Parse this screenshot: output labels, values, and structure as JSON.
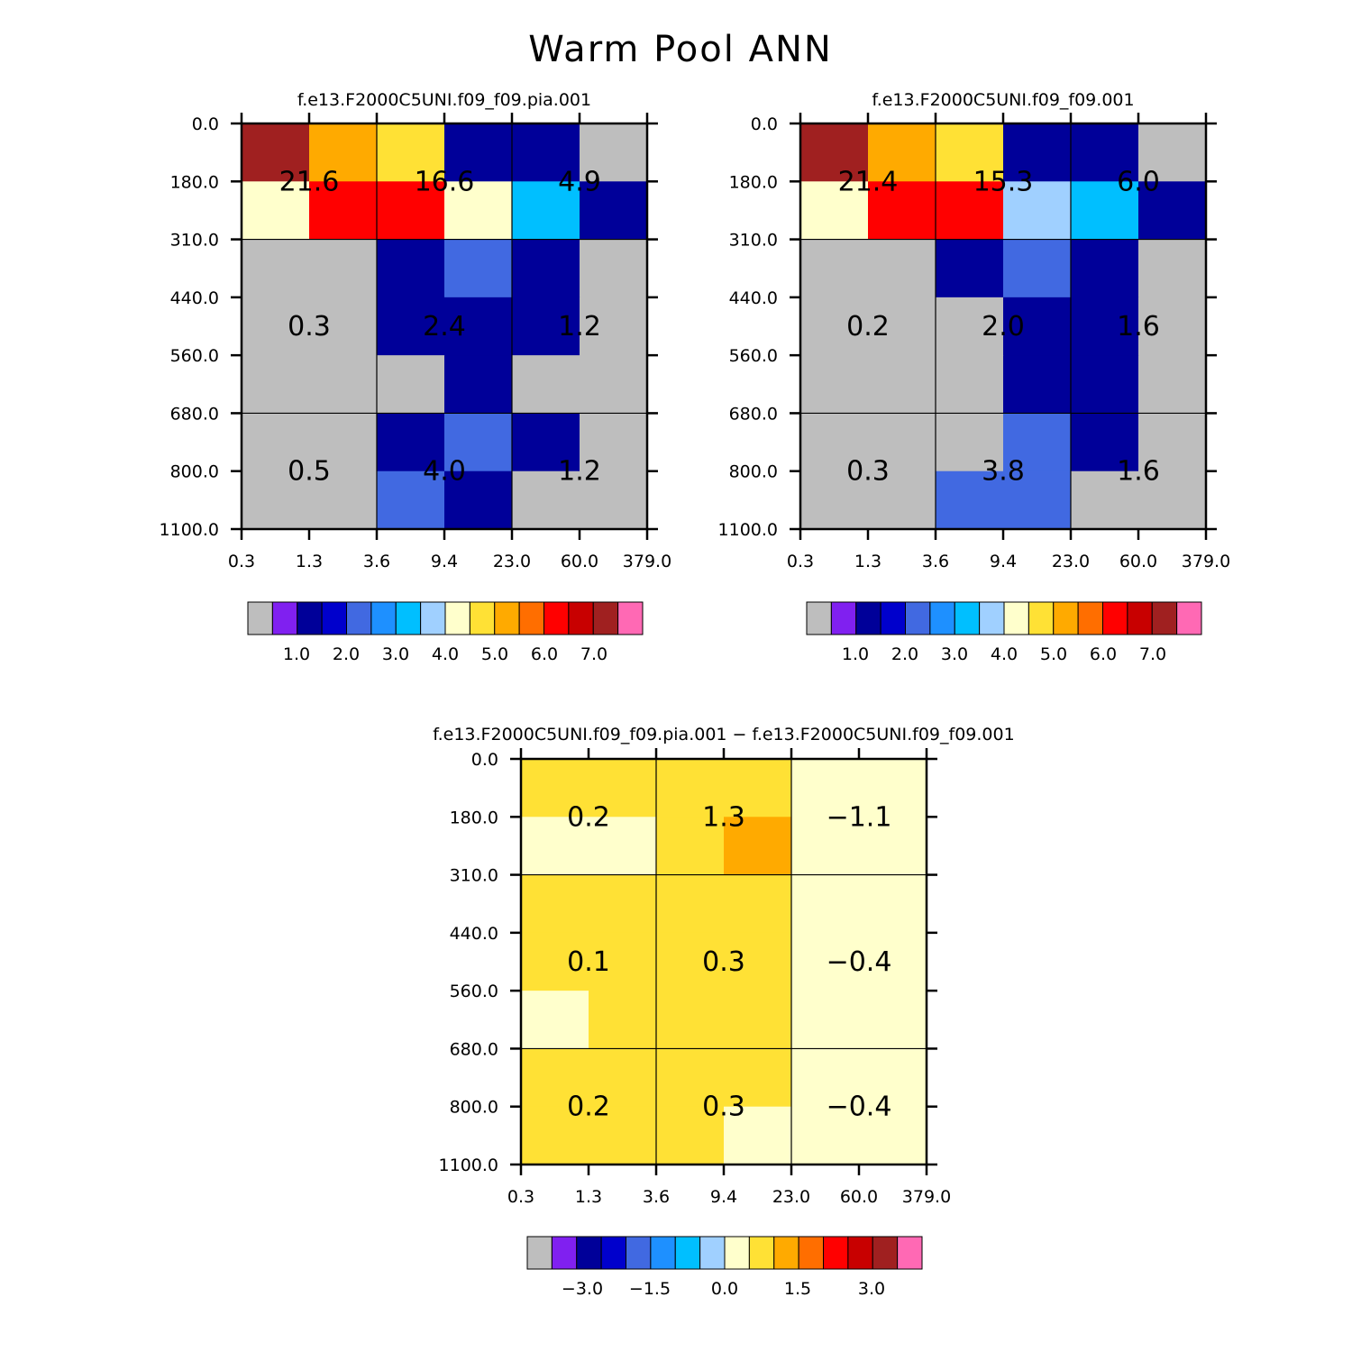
{
  "title": "Warm Pool ANN",
  "chart_data": [
    {
      "type": "heatmap",
      "name": "panel-1",
      "title": "f.e13.F2000C5UNI.f09_f09.pia.001",
      "x_ticks": [
        "0.3",
        "1.3",
        "3.6",
        "9.4",
        "23.0",
        "60.0",
        "379.0"
      ],
      "y_ticks": [
        "0.0",
        "180.0",
        "310.0",
        "440.0",
        "560.0",
        "680.0",
        "800.0",
        "1100.0"
      ],
      "cell_values": [
        [
          6.5,
          4.7,
          4.2,
          0.9,
          0.9,
          0.0
        ],
        [
          3.8,
          5.8,
          5.8,
          3.8,
          2.6,
          0.9
        ],
        [
          0.0,
          0.0,
          0.9,
          1.7,
          0.9,
          0.0
        ],
        [
          0.0,
          0.0,
          0.9,
          0.9,
          0.9,
          0.0
        ],
        [
          0.0,
          0.0,
          0.0,
          0.9,
          0.0,
          0.0
        ],
        [
          0.0,
          0.0,
          0.9,
          1.7,
          0.9,
          0.0
        ],
        [
          0.0,
          0.0,
          1.7,
          0.9,
          0.0,
          0.0
        ]
      ],
      "block_sums": {
        "row_groups": [
          [
            0,
            2
          ],
          [
            2,
            5
          ],
          [
            5,
            7
          ]
        ],
        "col_groups": [
          [
            0,
            2
          ],
          [
            2,
            4
          ],
          [
            4,
            6
          ]
        ],
        "labels": [
          [
            "21.6",
            "16.6",
            "4.9"
          ],
          [
            "0.3",
            "2.4",
            "1.2"
          ],
          [
            "0.5",
            "4.0",
            "1.2"
          ]
        ]
      },
      "colorbar": {
        "levels": [
          0.5,
          1.0,
          1.5,
          2.0,
          2.5,
          3.0,
          3.5,
          4.0,
          4.5,
          5.0,
          5.5,
          6.0,
          6.5,
          7.0,
          7.5
        ],
        "tick_labels": [
          "1.0",
          "2.0",
          "3.0",
          "4.0",
          "5.0",
          "6.0",
          "7.0"
        ]
      }
    },
    {
      "type": "heatmap",
      "name": "panel-2",
      "title": "f.e13.F2000C5UNI.f09_f09.001",
      "x_ticks": [
        "0.3",
        "1.3",
        "3.6",
        "9.4",
        "23.0",
        "60.0",
        "379.0"
      ],
      "y_ticks": [
        "0.0",
        "180.0",
        "310.0",
        "440.0",
        "560.0",
        "680.0",
        "800.0",
        "1100.0"
      ],
      "cell_values": [
        [
          6.5,
          4.7,
          4.2,
          0.9,
          0.9,
          0.0
        ],
        [
          3.8,
          5.8,
          5.8,
          3.3,
          2.8,
          0.9
        ],
        [
          0.0,
          0.0,
          0.9,
          1.7,
          0.9,
          0.0
        ],
        [
          0.0,
          0.0,
          0.0,
          0.9,
          0.9,
          0.0
        ],
        [
          0.0,
          0.0,
          0.0,
          0.9,
          0.9,
          0.0
        ],
        [
          0.0,
          0.0,
          0.0,
          1.7,
          0.9,
          0.0
        ],
        [
          0.0,
          0.0,
          1.7,
          1.7,
          0.0,
          0.0
        ]
      ],
      "block_sums": {
        "row_groups": [
          [
            0,
            2
          ],
          [
            2,
            5
          ],
          [
            5,
            7
          ]
        ],
        "col_groups": [
          [
            0,
            2
          ],
          [
            2,
            4
          ],
          [
            4,
            6
          ]
        ],
        "labels": [
          [
            "21.4",
            "15.3",
            "6.0"
          ],
          [
            "0.2",
            "2.0",
            "1.6"
          ],
          [
            "0.3",
            "3.8",
            "1.6"
          ]
        ]
      },
      "colorbar": {
        "levels": [
          0.5,
          1.0,
          1.5,
          2.0,
          2.5,
          3.0,
          3.5,
          4.0,
          4.5,
          5.0,
          5.5,
          6.0,
          6.5,
          7.0,
          7.5
        ],
        "tick_labels": [
          "1.0",
          "2.0",
          "3.0",
          "4.0",
          "5.0",
          "6.0",
          "7.0"
        ]
      }
    },
    {
      "type": "heatmap",
      "name": "panel-diff",
      "title": "f.e13.F2000C5UNI.f09_f09.pia.001 − f.e13.F2000C5UNI.f09_f09.001",
      "x_ticks": [
        "0.3",
        "1.3",
        "3.6",
        "9.4",
        "23.0",
        "60.0",
        "379.0"
      ],
      "y_ticks": [
        "0.0",
        "180.0",
        "310.0",
        "440.0",
        "560.0",
        "680.0",
        "800.0",
        "1100.0"
      ],
      "cell_values": [
        [
          0.1,
          0.1,
          0.1,
          0.1,
          -0.1,
          -0.1
        ],
        [
          -0.1,
          -0.1,
          0.1,
          0.6,
          -0.1,
          -0.1
        ],
        [
          0.1,
          0.1,
          0.1,
          0.1,
          -0.1,
          -0.1
        ],
        [
          0.1,
          0.1,
          0.1,
          0.1,
          -0.1,
          -0.1
        ],
        [
          -0.1,
          0.1,
          0.1,
          0.1,
          -0.1,
          -0.1
        ],
        [
          0.1,
          0.1,
          0.1,
          0.1,
          -0.1,
          -0.1
        ],
        [
          0.1,
          0.1,
          0.1,
          -0.1,
          -0.1,
          -0.1
        ]
      ],
      "block_sums": {
        "row_groups": [
          [
            0,
            2
          ],
          [
            2,
            5
          ],
          [
            5,
            7
          ]
        ],
        "col_groups": [
          [
            0,
            2
          ],
          [
            2,
            4
          ],
          [
            4,
            6
          ]
        ],
        "labels": [
          [
            "0.2",
            "1.3",
            "−1.1"
          ],
          [
            "0.1",
            "0.3",
            "−0.4"
          ],
          [
            "0.2",
            "0.3",
            "−0.4"
          ]
        ]
      },
      "colorbar": {
        "levels": [
          -3.5,
          -3.0,
          -2.5,
          -2.0,
          -1.5,
          -1.0,
          -0.5,
          0.0,
          0.5,
          1.0,
          1.5,
          2.0,
          2.5,
          3.0,
          3.5
        ],
        "tick_labels": [
          "−3.0",
          "−1.5",
          "0.0",
          "1.5",
          "3.0"
        ]
      }
    }
  ],
  "palette": [
    "#bebebe",
    "#8020f0",
    "#000099",
    "#0000cc",
    "#4169e1",
    "#1e90ff",
    "#00bfff",
    "#a0d0ff",
    "#ffffcc",
    "#ffe135",
    "#ffaa00",
    "#ff6e00",
    "#ff0000",
    "#c80000",
    "#a02020",
    "#ff69b4"
  ]
}
